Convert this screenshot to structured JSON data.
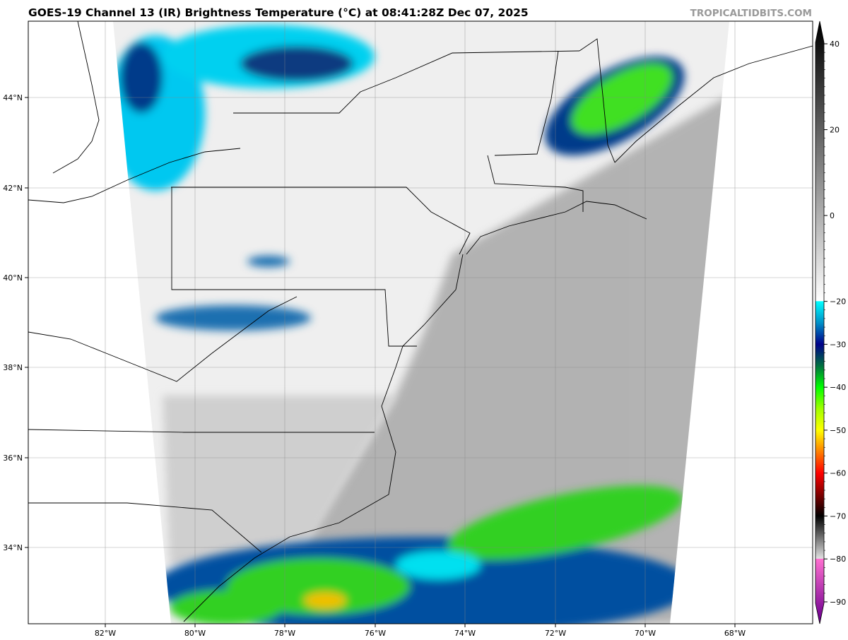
{
  "header": {
    "title": "GOES-19 Channel 13 (IR) Brightness Temperature (°C) at 08:41:28Z Dec 07, 2025",
    "brand": "TROPICALTIDBITS.COM"
  },
  "map": {
    "longitude_labels": [
      "82°W",
      "80°W",
      "78°W",
      "76°W",
      "74°W",
      "72°W",
      "70°W",
      "68°W"
    ],
    "latitude_labels": [
      "44°N",
      "42°N",
      "40°N",
      "38°N",
      "36°N",
      "34°N"
    ]
  },
  "colorbar": {
    "tick_labels": [
      "40",
      "20",
      "0",
      "−20",
      "−30",
      "−40",
      "−50",
      "−60",
      "−70",
      "−80",
      "−90"
    ],
    "tick_values": [
      40,
      20,
      0,
      -20,
      -30,
      -40,
      -50,
      -60,
      -70,
      -80,
      -90
    ],
    "stops": [
      {
        "v": 44,
        "c": "#000000"
      },
      {
        "v": -19.9,
        "c": "#ffffff"
      },
      {
        "v": -20,
        "c": "#00ffff"
      },
      {
        "v": -25,
        "c": "#0090c8"
      },
      {
        "v": -30,
        "c": "#00008a"
      },
      {
        "v": -35,
        "c": "#007040"
      },
      {
        "v": -40,
        "c": "#00ff00"
      },
      {
        "v": -45,
        "c": "#a0ff00"
      },
      {
        "v": -50,
        "c": "#ffff00"
      },
      {
        "v": -55,
        "c": "#ff8000"
      },
      {
        "v": -60,
        "c": "#ff0000"
      },
      {
        "v": -65,
        "c": "#800000"
      },
      {
        "v": -70,
        "c": "#000000"
      },
      {
        "v": -79.9,
        "c": "#e0e0e0"
      },
      {
        "v": -80,
        "c": "#ff70d0"
      },
      {
        "v": -94,
        "c": "#700090"
      }
    ]
  }
}
